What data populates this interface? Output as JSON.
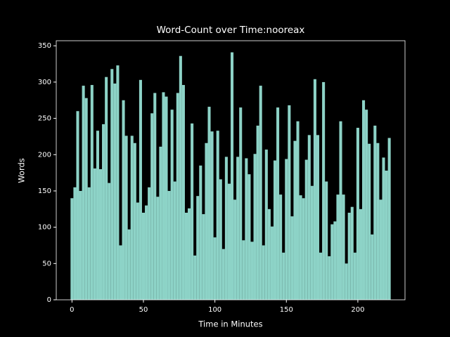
{
  "chart_data": {
    "type": "bar",
    "title": "Word-Count over Time:nooreax",
    "x_label": "Time in Minutes",
    "y_label": "Words",
    "color": "#8dd3c7",
    "bar_width": 2,
    "x": [
      0,
      2,
      4,
      6,
      8,
      10,
      12,
      14,
      16,
      18,
      20,
      22,
      24,
      26,
      28,
      30,
      32,
      34,
      36,
      38,
      40,
      42,
      44,
      46,
      48,
      50,
      52,
      54,
      56,
      58,
      60,
      62,
      64,
      66,
      68,
      70,
      72,
      74,
      76,
      78,
      80,
      82,
      84,
      86,
      88,
      90,
      92,
      94,
      96,
      98,
      100,
      102,
      104,
      106,
      108,
      110,
      112,
      114,
      116,
      118,
      120,
      122,
      124,
      126,
      128,
      130,
      132,
      134,
      136,
      138,
      140,
      142,
      144,
      146,
      148,
      150,
      152,
      154,
      156,
      158,
      160,
      162,
      164,
      166,
      168,
      170,
      172,
      174,
      176,
      178,
      180,
      182,
      184,
      186,
      188,
      190,
      192,
      194,
      196,
      198,
      200,
      202,
      204,
      206,
      208,
      210,
      212,
      214,
      216,
      218,
      220,
      222
    ],
    "values": [
      140,
      155,
      260,
      150,
      295,
      278,
      155,
      296,
      181,
      233,
      180,
      242,
      307,
      161,
      318,
      298,
      323,
      75,
      275,
      226,
      97,
      226,
      216,
      134,
      303,
      120,
      130,
      155,
      257,
      285,
      142,
      211,
      286,
      280,
      150,
      262,
      163,
      285,
      336,
      296,
      120,
      126,
      243,
      61,
      143,
      185,
      118,
      216,
      266,
      232,
      86,
      233,
      166,
      70,
      197,
      160,
      341,
      138,
      197,
      265,
      82,
      195,
      173,
      80,
      201,
      240,
      295,
      75,
      207,
      125,
      101,
      192,
      265,
      145,
      65,
      194,
      268,
      115,
      219,
      246,
      144,
      140,
      193,
      227,
      157,
      304,
      227,
      65,
      300,
      163,
      60,
      104,
      108,
      145,
      246,
      145,
      50,
      120,
      128,
      65,
      237,
      125,
      275,
      262,
      215,
      90,
      240,
      216,
      138,
      196,
      178,
      223
    ],
    "xlim": [
      -11,
      233
    ],
    "ylim": [
      0,
      357
    ],
    "xticks": [
      0,
      50,
      100,
      150,
      200
    ],
    "yticks": [
      0,
      50,
      100,
      150,
      200,
      250,
      300,
      350
    ]
  }
}
